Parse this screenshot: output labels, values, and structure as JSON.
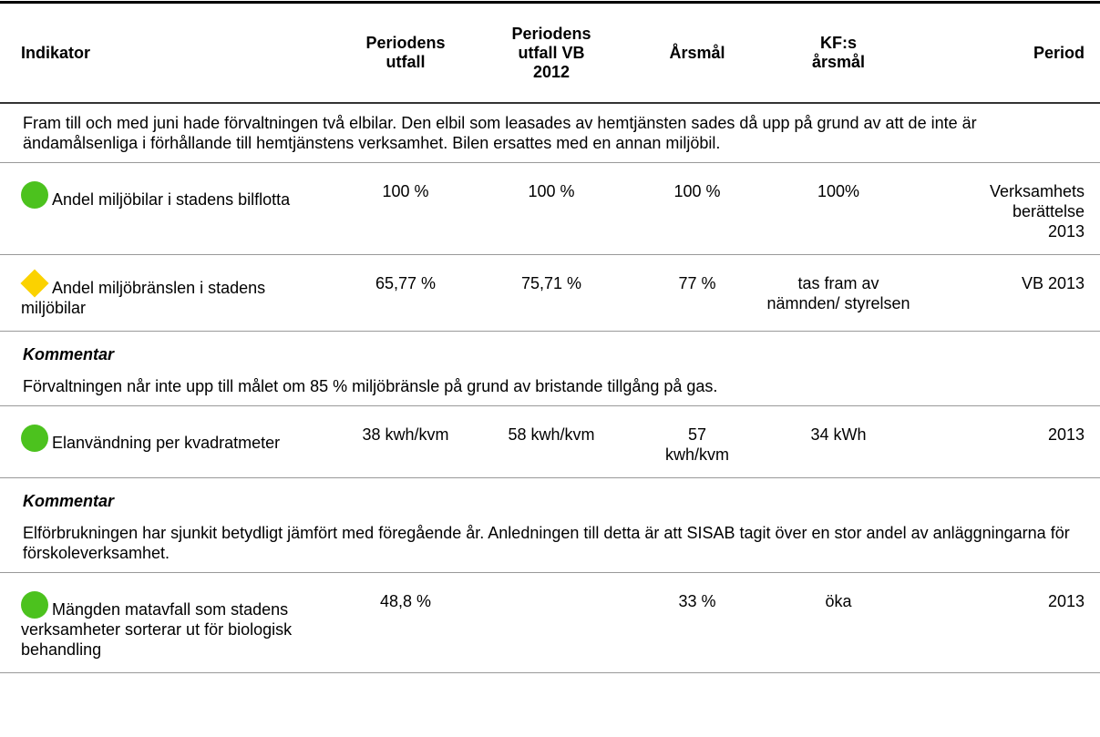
{
  "table": {
    "columns": [
      "Indikator",
      "Periodens\nutfall",
      "Periodens\nutfall VB\n2012",
      "Årsmål",
      "KF:s\nårsmål",
      "Period"
    ],
    "rows": [
      {
        "type": "note",
        "text": "Fram till och med juni hade förvaltningen två elbilar. Den elbil som leasades av hemtjänsten sades då upp på grund av att de inte är ändamålsenliga i förhållande till hemtjänstens verksamhet. Bilen ersattes med en annan miljöbil."
      },
      {
        "type": "indicator",
        "icon": {
          "shape": "circle",
          "color": "#4cc21e"
        },
        "cells": [
          "Andel miljöbilar i stadens bilflotta",
          "100 %",
          "100 %",
          "100 %",
          "100%",
          "Verksamhetsberättelse 2013"
        ]
      },
      {
        "type": "indicator",
        "icon": {
          "shape": "diamond",
          "color": "#fbd200"
        },
        "cells": [
          "Andel miljöbränslen i stadens miljöbilar",
          "65,77 %",
          "75,71 %",
          "77 %",
          "tas fram av nämnden/ styrelsen",
          "VB 2013"
        ]
      },
      {
        "type": "comment",
        "heading": "Kommentar",
        "text": "Förvaltningen når inte upp till målet om 85 % miljöbränsle på grund av bristande tillgång på gas."
      },
      {
        "type": "indicator",
        "icon": {
          "shape": "circle",
          "color": "#4cc21e"
        },
        "cells": [
          "Elanvändning per kvadratmeter",
          "38 kwh/kvm",
          "58 kwh/kvm",
          "57 kwh/kvm",
          "34 kWh",
          "2013"
        ]
      },
      {
        "type": "comment",
        "heading": "Kommentar",
        "text": "Elförbrukningen har sjunkit betydligt jämfört med föregående år. Anledningen till detta är att SISAB tagit över en stor andel av anläggningarna för förskoleverksamhet."
      },
      {
        "type": "indicator",
        "icon": {
          "shape": "circle",
          "color": "#4cc21e"
        },
        "cells": [
          "Mängden matavfall som stadens verksamheter sorterar ut för biologisk behandling",
          "48,8 %",
          "",
          "33 %",
          "öka",
          "2013"
        ]
      }
    ]
  }
}
